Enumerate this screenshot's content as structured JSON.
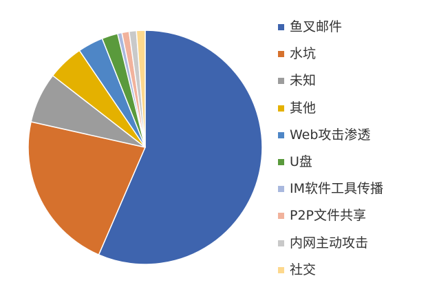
{
  "chart_data": {
    "type": "pie",
    "title": "",
    "series": [
      {
        "slices": [
          {
            "label": "鱼叉邮件",
            "value": 56.5,
            "color": "#3E64AE"
          },
          {
            "label": "水坑",
            "value": 22.0,
            "color": "#D6712D"
          },
          {
            "label": "未知",
            "value": 7.0,
            "color": "#9C9C9C"
          },
          {
            "label": "其他",
            "value": 5.0,
            "color": "#E4B100"
          },
          {
            "label": "Web攻击渗透",
            "value": 3.5,
            "color": "#4E86C6"
          },
          {
            "label": "U盘",
            "value": 2.2,
            "color": "#5A9A3C"
          },
          {
            "label": "IM软件工具传播",
            "value": 0.6,
            "color": "#A9B8DE"
          },
          {
            "label": "P2P文件共享",
            "value": 1.0,
            "color": "#F1B29C"
          },
          {
            "label": "内网主动攻击",
            "value": 1.0,
            "color": "#C9C9C9"
          },
          {
            "label": "社交",
            "value": 1.2,
            "color": "#FDD88D"
          }
        ]
      }
    ],
    "legend_position": "right",
    "start_angle_deg": 0,
    "direction": "clockwise",
    "slice_border_color": "#ffffff"
  }
}
